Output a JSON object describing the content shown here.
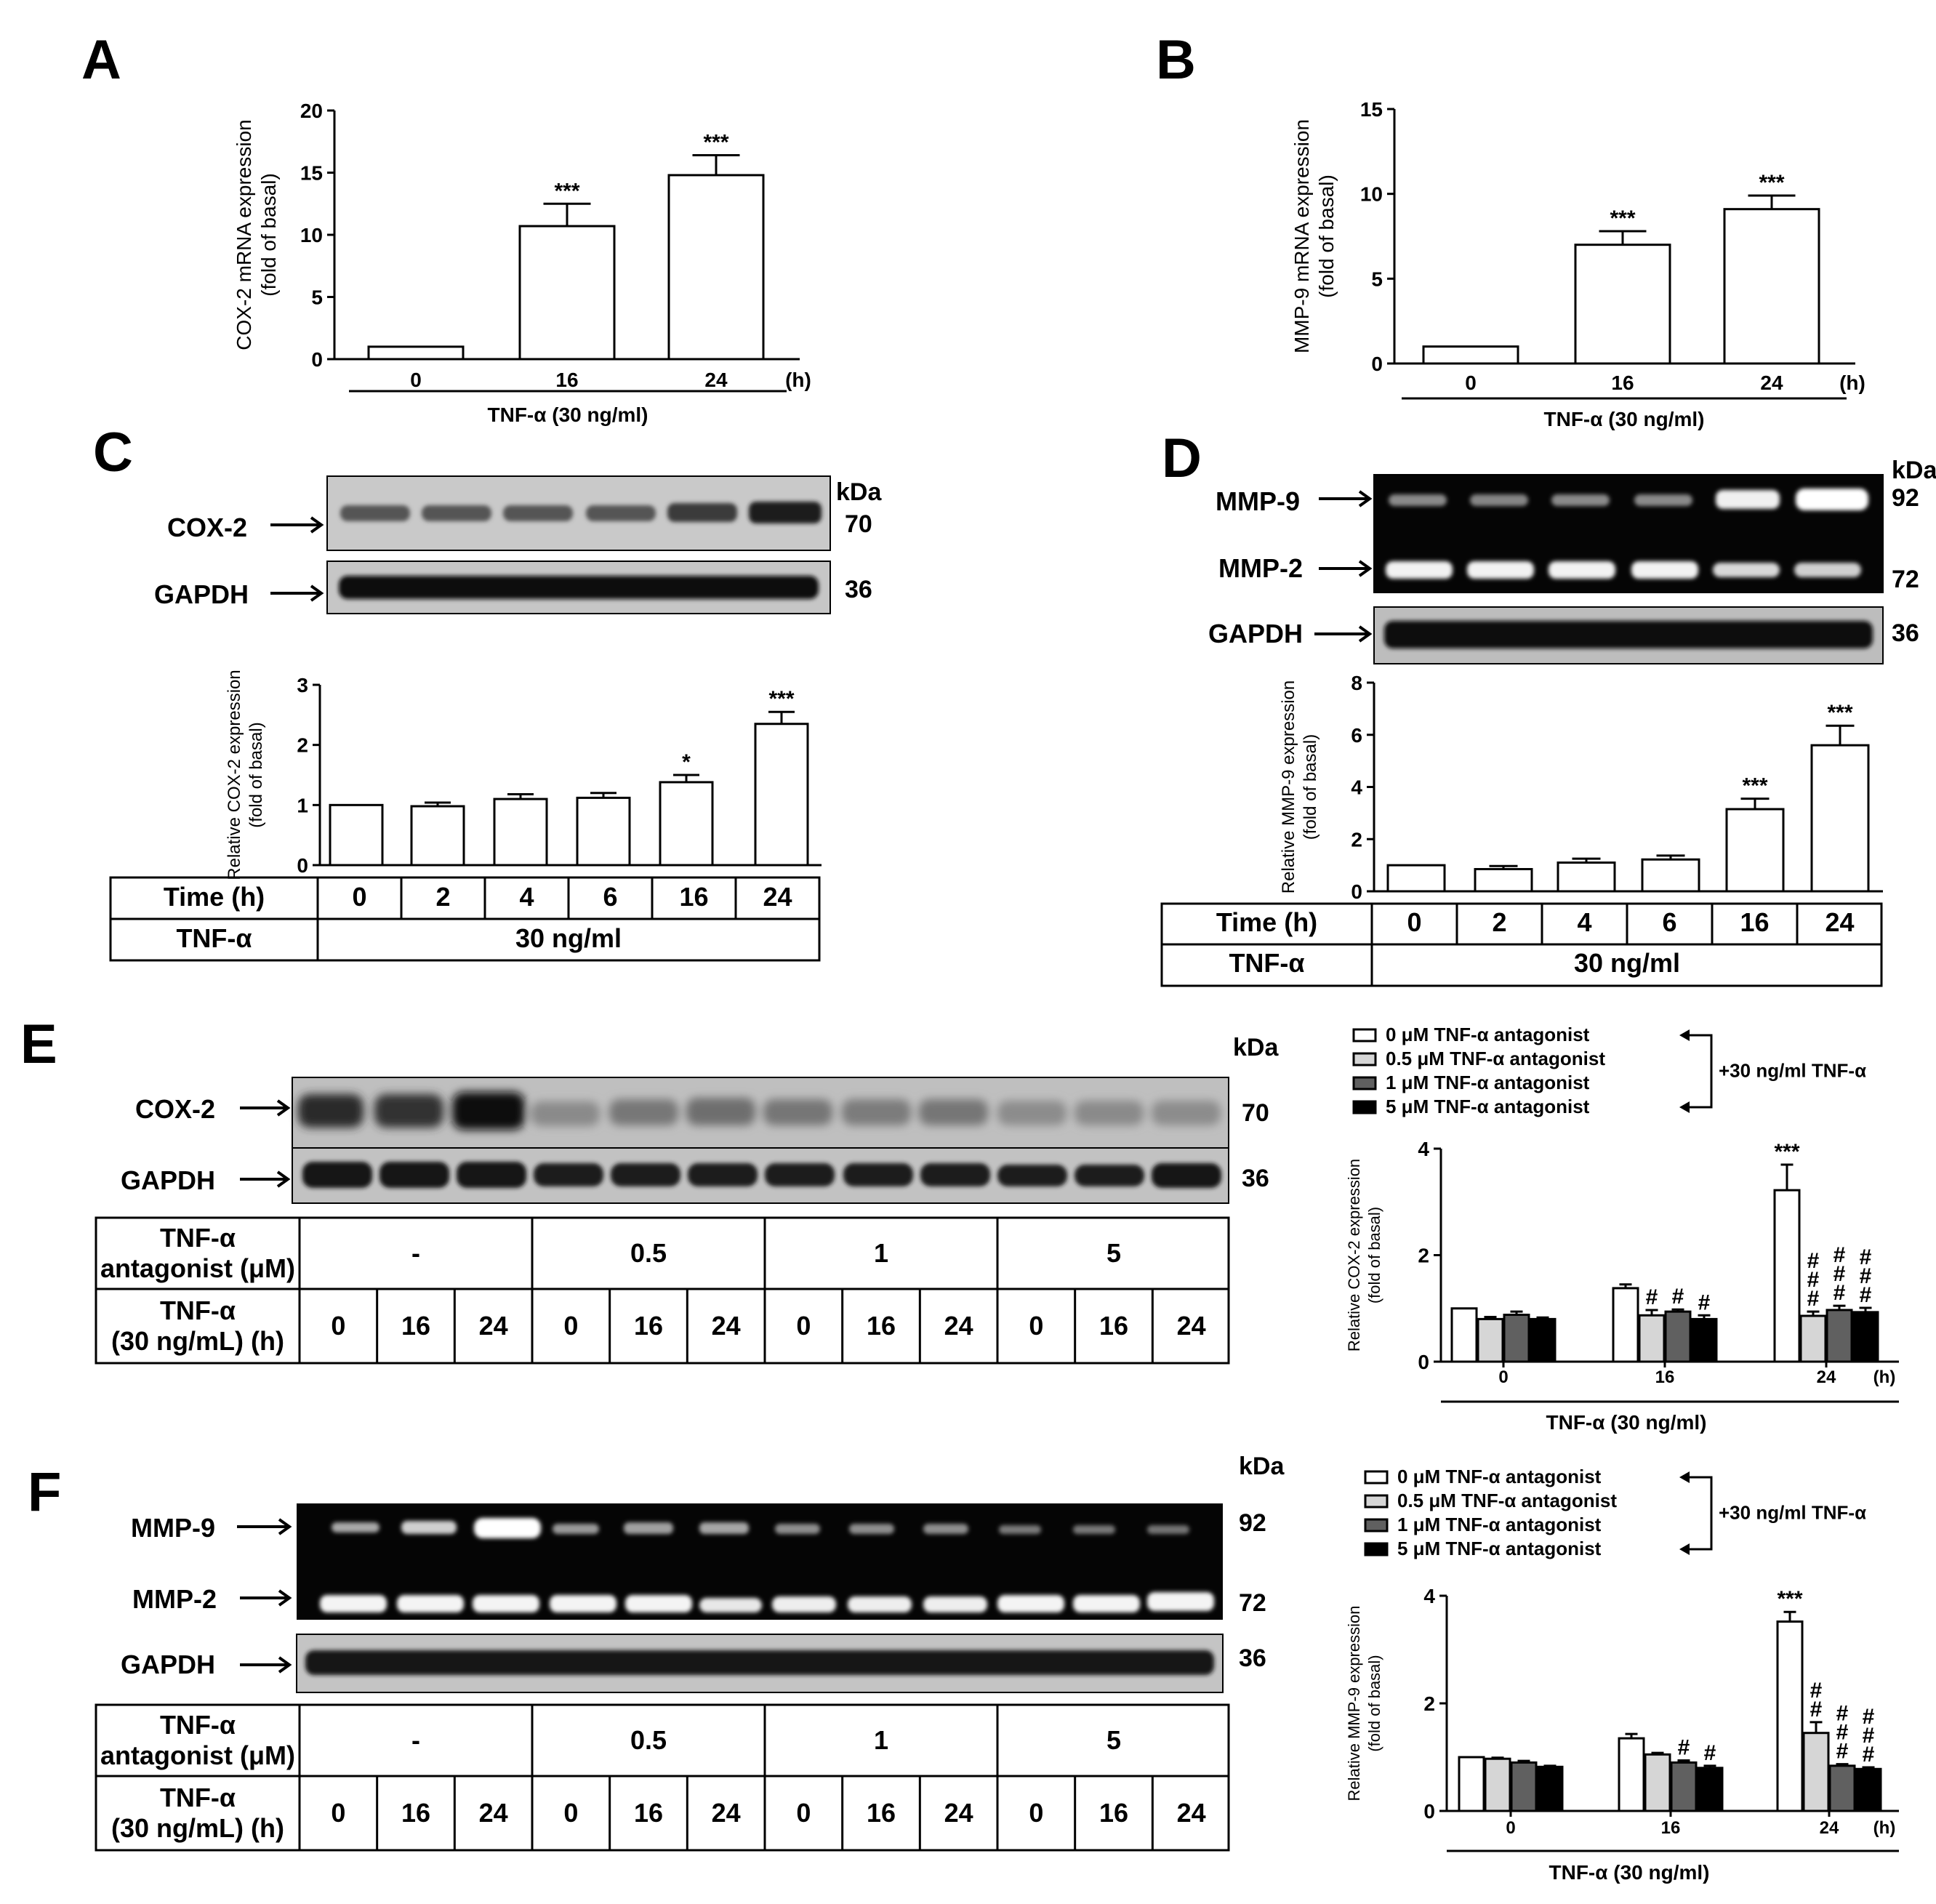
{
  "panels": {
    "A": {
      "label": "A"
    },
    "B": {
      "label": "B"
    },
    "C": {
      "label": "C",
      "bands": [
        "COX-2",
        "GAPDH"
      ],
      "kda": [
        "kDa",
        "70",
        "36"
      ],
      "table": {
        "row1_head": "Time (h)",
        "row1": [
          "0",
          "2",
          "4",
          "6",
          "16",
          "24"
        ],
        "row2_head": "TNF-α",
        "row2_value": "30 ng/ml"
      }
    },
    "D": {
      "label": "D",
      "bands": [
        "MMP-9",
        "MMP-2",
        "GAPDH"
      ],
      "kda": [
        "kDa",
        "92",
        "72",
        "36"
      ],
      "table": {
        "row1_head": "Time (h)",
        "row1": [
          "0",
          "2",
          "4",
          "6",
          "16",
          "24"
        ],
        "row2_head": "TNF-α",
        "row2_value": "30 ng/ml"
      }
    },
    "E": {
      "label": "E",
      "bands": [
        "COX-2",
        "GAPDH"
      ],
      "kda": [
        "kDa",
        "70",
        "36"
      ],
      "table": {
        "row1_head_line1": "TNF-α",
        "row1_head_line2": "antagonist (μM)",
        "row1": [
          "-",
          "0.5",
          "1",
          "5"
        ],
        "row2_head_line1": "TNF-α",
        "row2_head_line2": "(30 ng/mL) (h)",
        "row2": [
          "0",
          "16",
          "24",
          "0",
          "16",
          "24",
          "0",
          "16",
          "24",
          "0",
          "16",
          "24"
        ]
      }
    },
    "F": {
      "label": "F",
      "bands": [
        "MMP-9",
        "MMP-2",
        "GAPDH"
      ],
      "kda": [
        "kDa",
        "92",
        "72",
        "36"
      ],
      "table": {
        "row1_head_line1": "TNF-α",
        "row1_head_line2": "antagonist (μM)",
        "row1": [
          "-",
          "0.5",
          "1",
          "5"
        ],
        "row2_head_line1": "TNF-α",
        "row2_head_line2": "(30 ng/mL) (h)",
        "row2": [
          "0",
          "16",
          "24",
          "0",
          "16",
          "24",
          "0",
          "16",
          "24",
          "0",
          "16",
          "24"
        ]
      }
    }
  },
  "chart_data": [
    {
      "id": "A",
      "type": "bar",
      "ylabel_line1": "COX-2 mRNA expression",
      "ylabel_line2": "(fold of basal)",
      "categories": [
        "0",
        "16",
        "24"
      ],
      "cat_unit": "(h)",
      "group_label": "TNF-α (30 ng/ml)",
      "values": [
        1,
        10.7,
        14.8
      ],
      "errors": [
        0,
        1.8,
        1.6
      ],
      "sig": [
        "",
        "***",
        "***"
      ],
      "ylim": [
        0,
        20
      ],
      "yticks": [
        "0",
        "5",
        "10",
        "15",
        "20"
      ]
    },
    {
      "id": "B",
      "type": "bar",
      "ylabel_line1": "MMP-9 mRNA expression",
      "ylabel_line2": "(fold of basal)",
      "categories": [
        "0",
        "16",
        "24"
      ],
      "cat_unit": "(h)",
      "group_label": "TNF-α (30 ng/ml)",
      "values": [
        1,
        7,
        9.1
      ],
      "errors": [
        0,
        0.8,
        0.8
      ],
      "sig": [
        "",
        "***",
        "***"
      ],
      "ylim": [
        0,
        15
      ],
      "yticks": [
        "0",
        "5",
        "10",
        "15"
      ]
    },
    {
      "id": "C",
      "type": "bar",
      "ylabel_line1": "Relative COX-2 expression",
      "ylabel_line2": "(fold of basal)",
      "categories": [
        "0",
        "2",
        "4",
        "6",
        "16",
        "24"
      ],
      "values": [
        1,
        0.98,
        1.1,
        1.12,
        1.38,
        2.35
      ],
      "errors": [
        0,
        0.06,
        0.08,
        0.08,
        0.12,
        0.2
      ],
      "sig": [
        "",
        "",
        "",
        "",
        "*",
        "***"
      ],
      "ylim": [
        0,
        3
      ],
      "yticks": [
        "0",
        "1",
        "2",
        "3"
      ]
    },
    {
      "id": "D",
      "type": "bar",
      "ylabel_line1": "Relative MMP-9 expression",
      "ylabel_line2": "(fold of basal)",
      "categories": [
        "0",
        "2",
        "4",
        "6",
        "16",
        "24"
      ],
      "values": [
        1,
        0.85,
        1.1,
        1.22,
        3.15,
        5.6
      ],
      "errors": [
        0,
        0.12,
        0.15,
        0.15,
        0.4,
        0.75
      ],
      "sig": [
        "",
        "",
        "",
        "",
        "***",
        "***"
      ],
      "ylim": [
        0,
        8
      ],
      "yticks": [
        "0",
        "2",
        "4",
        "6",
        "8"
      ]
    },
    {
      "id": "E",
      "type": "bar",
      "ylabel_line1": "Relative COX-2 expression",
      "ylabel_line2": "(fold of basal)",
      "categories": [
        "0",
        "16",
        "24"
      ],
      "cat_unit": "(h)",
      "group_label": "TNF-α (30 ng/ml)",
      "series": [
        {
          "name": "0 μM TNF-α antagonist",
          "values": [
            1,
            1.38,
            3.22
          ],
          "errors": [
            0,
            0.07,
            0.48
          ],
          "sig": [
            "",
            "",
            "***"
          ]
        },
        {
          "name": "0.5 μM TNF-α antagonist",
          "values": [
            0.8,
            0.87,
            0.86
          ],
          "errors": [
            0.04,
            0.1,
            0.08
          ],
          "sig": [
            "",
            "#",
            "#\n#\n#"
          ]
        },
        {
          "name": "1 μM TNF-α antagonist",
          "values": [
            0.88,
            0.94,
            0.97
          ],
          "errors": [
            0.06,
            0.04,
            0.08
          ],
          "sig": [
            "",
            "#",
            "#\n#\n#"
          ]
        },
        {
          "name": "5 μM TNF-α antagonist",
          "values": [
            0.8,
            0.8,
            0.93
          ],
          "errors": [
            0.03,
            0.07,
            0.08
          ],
          "sig": [
            "",
            "#",
            "#\n#\n#"
          ]
        }
      ],
      "legend_note": "+30 ng/ml TNF-α",
      "ylim": [
        0,
        4
      ],
      "yticks": [
        "0",
        "2",
        "4"
      ]
    },
    {
      "id": "F",
      "type": "bar",
      "ylabel_line1": "Relative MMP-9 expression",
      "ylabel_line2": "(fold of basal)",
      "categories": [
        "0",
        "16",
        "24"
      ],
      "cat_unit": "(h)",
      "group_label": "TNF-α (30 ng/ml)",
      "series": [
        {
          "name": "0 μM TNF-α antagonist",
          "values": [
            1,
            1.35,
            3.52
          ],
          "errors": [
            0,
            0.08,
            0.18
          ],
          "sig": [
            "",
            "",
            "***"
          ]
        },
        {
          "name": "0.5 μM TNF-α antagonist",
          "values": [
            0.97,
            1.05,
            1.45
          ],
          "errors": [
            0.02,
            0.03,
            0.2
          ],
          "sig": [
            "",
            "",
            "#\n#"
          ]
        },
        {
          "name": "1 μM TNF-α antagonist",
          "values": [
            0.9,
            0.9,
            0.84
          ],
          "errors": [
            0.03,
            0.04,
            0.03
          ],
          "sig": [
            "",
            "#",
            "#\n#\n#"
          ]
        },
        {
          "name": "5 μM TNF-α antagonist",
          "values": [
            0.82,
            0.8,
            0.78
          ],
          "errors": [
            0.02,
            0.04,
            0.03
          ],
          "sig": [
            "",
            "#",
            "#\n#\n#"
          ]
        }
      ],
      "legend_note": "+30 ng/ml TNF-α",
      "ylim": [
        0,
        4
      ],
      "yticks": [
        "0",
        "2",
        "4"
      ]
    }
  ],
  "colors": {
    "series": [
      "#ffffff",
      "#d6d6d6",
      "#606060",
      "#000000"
    ]
  }
}
